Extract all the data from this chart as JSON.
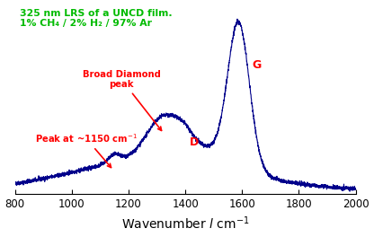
{
  "title_line1": "325 nm LRS of a UNCD film.",
  "title_line2": "1% CH₄ / 2% H₂ / 97% Ar",
  "title_color": "#00bb00",
  "xlabel": "Wavenumber",
  "xlabel_italic": "l",
  "xlabel_unit": "cm⁻¹",
  "xlim": [
    800,
    2000
  ],
  "line_color": "#00008B",
  "annotation_color": "red",
  "background_color": "#ffffff",
  "figsize": [
    4.16,
    2.64
  ],
  "dpi": 100
}
